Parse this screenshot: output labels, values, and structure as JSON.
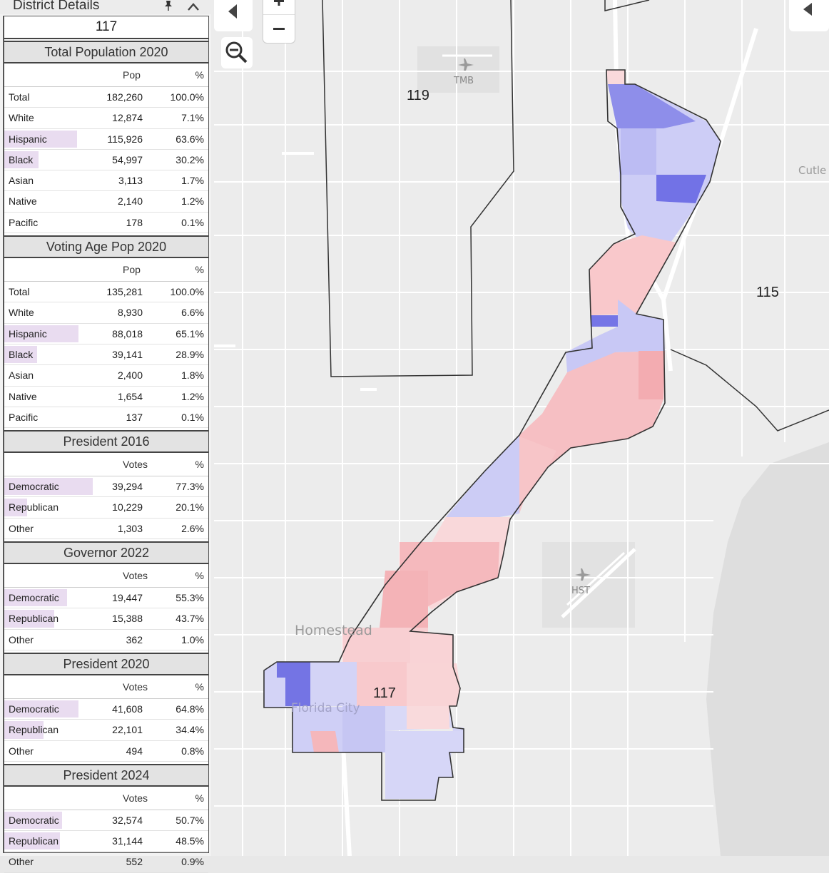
{
  "panel": {
    "title": "District Details",
    "district": "117",
    "sections": [
      {
        "title": "Total Population 2020",
        "col1": "Pop",
        "col2": "%",
        "rows": [
          {
            "label": "Total",
            "value": "182,260",
            "pct": "100.0%",
            "bar": 0
          },
          {
            "label": "White",
            "value": "12,874",
            "pct": "7.1%",
            "bar": 0
          },
          {
            "label": "Hispanic",
            "value": "115,926",
            "pct": "63.6%",
            "bar": 0.636
          },
          {
            "label": "Black",
            "value": "54,997",
            "pct": "30.2%",
            "bar": 0.302
          },
          {
            "label": "Asian",
            "value": "3,113",
            "pct": "1.7%",
            "bar": 0
          },
          {
            "label": "Native",
            "value": "2,140",
            "pct": "1.2%",
            "bar": 0
          },
          {
            "label": "Pacific",
            "value": "178",
            "pct": "0.1%",
            "bar": 0
          }
        ]
      },
      {
        "title": "Voting Age Pop 2020",
        "col1": "Pop",
        "col2": "%",
        "rows": [
          {
            "label": "Total",
            "value": "135,281",
            "pct": "100.0%",
            "bar": 0
          },
          {
            "label": "White",
            "value": "8,930",
            "pct": "6.6%",
            "bar": 0
          },
          {
            "label": "Hispanic",
            "value": "88,018",
            "pct": "65.1%",
            "bar": 0.651
          },
          {
            "label": "Black",
            "value": "39,141",
            "pct": "28.9%",
            "bar": 0.289
          },
          {
            "label": "Asian",
            "value": "2,400",
            "pct": "1.8%",
            "bar": 0
          },
          {
            "label": "Native",
            "value": "1,654",
            "pct": "1.2%",
            "bar": 0
          },
          {
            "label": "Pacific",
            "value": "137",
            "pct": "0.1%",
            "bar": 0
          }
        ]
      },
      {
        "title": "President 2016",
        "col1": "Votes",
        "col2": "%",
        "rows": [
          {
            "label": "Democratic",
            "value": "39,294",
            "pct": "77.3%",
            "bar": 0.773
          },
          {
            "label": "Republican",
            "value": "10,229",
            "pct": "20.1%",
            "bar": 0.201
          },
          {
            "label": "Other",
            "value": "1,303",
            "pct": "2.6%",
            "bar": 0
          }
        ]
      },
      {
        "title": "Governor 2022",
        "col1": "Votes",
        "col2": "%",
        "rows": [
          {
            "label": "Democratic",
            "value": "19,447",
            "pct": "55.3%",
            "bar": 0.553
          },
          {
            "label": "Republican",
            "value": "15,388",
            "pct": "43.7%",
            "bar": 0.437
          },
          {
            "label": "Other",
            "value": "362",
            "pct": "1.0%",
            "bar": 0
          }
        ]
      },
      {
        "title": "President 2020",
        "col1": "Votes",
        "col2": "%",
        "rows": [
          {
            "label": "Democratic",
            "value": "41,608",
            "pct": "64.8%",
            "bar": 0.648
          },
          {
            "label": "Republican",
            "value": "22,101",
            "pct": "34.4%",
            "bar": 0.344
          },
          {
            "label": "Other",
            "value": "494",
            "pct": "0.8%",
            "bar": 0
          }
        ]
      },
      {
        "title": "President 2024",
        "col1": "Votes",
        "col2": "%",
        "rows": [
          {
            "label": "Democratic",
            "value": "32,574",
            "pct": "50.7%",
            "bar": 0.507
          },
          {
            "label": "Republican",
            "value": "31,144",
            "pct": "48.5%",
            "bar": 0.485
          },
          {
            "label": "Other",
            "value": "552",
            "pct": "0.9%",
            "bar": 0
          }
        ]
      }
    ]
  },
  "map": {
    "district_labels": [
      "119",
      "115",
      "117"
    ],
    "places": [
      "Homestead",
      "Florida City",
      "Cutle"
    ],
    "airports": [
      "TMB",
      "HST"
    ],
    "colors": {
      "dem": "#7b7bea",
      "rep": "#f2a5aa",
      "bar": "#e9dcf0",
      "land": "#ededed",
      "water": "#dcdcdc"
    }
  }
}
